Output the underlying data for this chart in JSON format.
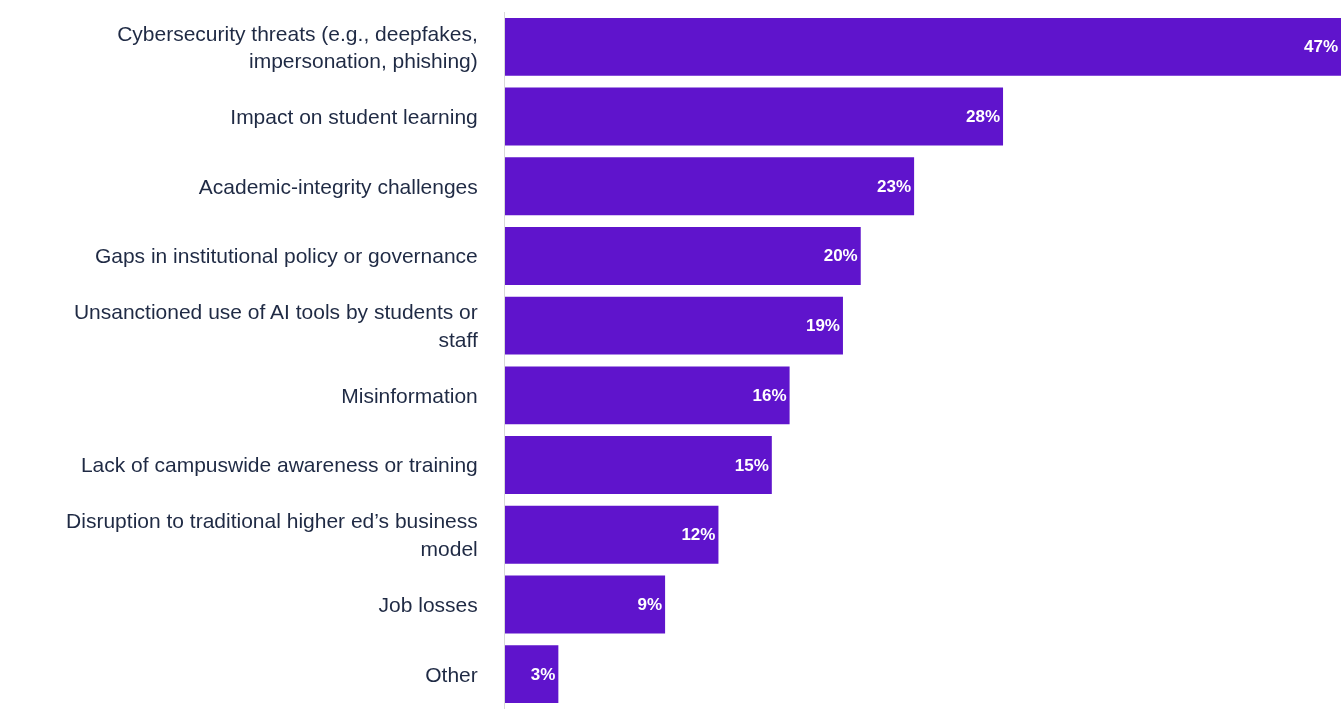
{
  "chart_data": {
    "type": "bar",
    "orientation": "horizontal",
    "categories": [
      "Cybersecurity threats (e.g., deepfakes, impersonation, phishing)",
      "Impact on student learning",
      "Academic-integrity challenges",
      "Gaps in institutional policy or governance",
      "Unsanctioned use of AI tools by students or staff",
      "Misinformation",
      "Lack of campuswide awareness or training",
      "Disruption to traditional higher ed’s business model",
      "Job losses",
      "Other"
    ],
    "values": [
      47,
      28,
      23,
      20,
      19,
      16,
      15,
      12,
      9,
      3
    ],
    "value_labels": [
      "47%",
      "28%",
      "23%",
      "20%",
      "19%",
      "16%",
      "15%",
      "12%",
      "9%",
      "3%"
    ],
    "color": "#5f14cc",
    "legend": false
  }
}
